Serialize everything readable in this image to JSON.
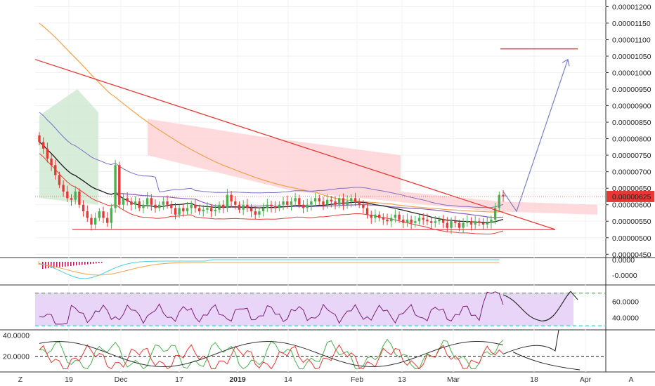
{
  "colors": {
    "up": "#4caf50",
    "down": "#e53935",
    "trendline": "#e53935",
    "forecast_arrow": "#7b7fc9",
    "ema_orange": "#f5a04a",
    "sma_black": "#222222",
    "bb_purple": "#8e5bbf",
    "bb_upper": "#7a6fc2",
    "ichimoku_red_cloud": "#ffcdd2",
    "ichimoku_green_cloud": "#c8e6c9",
    "rsi_line": "#7b1f7b",
    "rsi_band": "#e9d5f7",
    "rsi_upper_dash": "#4caf50",
    "rsi_lower_dash": "#4dd0e1",
    "macd_hist": "#c2185b",
    "price_badge": "#e53935"
  },
  "chart_data": [
    {
      "type": "candlestick",
      "panel": "price",
      "y_ticks": [
        "0.00001200",
        "0.00001150",
        "0.00001100",
        "0.00001050",
        "0.00001000",
        "0.00000950",
        "0.00000900",
        "0.00000850",
        "0.00000800",
        "0.00000750",
        "0.00000700",
        "0.00000650",
        "0.00000600",
        "0.00000550",
        "0.00000500",
        "0.00000450"
      ],
      "ylim": [
        4.4e-06,
        1.22e-05
      ],
      "last_price_label": "0.00000625",
      "last_price": 6.25e-06,
      "x_ticks": [
        "19",
        "Dec",
        "17",
        "2019",
        "14",
        "Feb",
        "13",
        "Mar",
        "18",
        "Apr"
      ],
      "candles_close": [
        7.9e-06,
        7.7e-06,
        7.4e-06,
        7.2e-06,
        6.9e-06,
        6.6e-06,
        6.4e-06,
        6.2e-06,
        6.15e-06,
        6.4e-06,
        6e-06,
        5.8e-06,
        5.6e-06,
        5.4e-06,
        5.6e-06,
        5.8e-06,
        5.6e-06,
        5.45e-06,
        5.9e-06,
        7.2e-06,
        6e-06,
        6.2e-06,
        6.1e-06,
        6e-06,
        6.1e-06,
        5.9e-06,
        6e-06,
        6.2e-06,
        6e-06,
        5.9e-06,
        6e-06,
        6.1e-06,
        6e-06,
        5.9e-06,
        5.7e-06,
        5.9e-06,
        5.8e-06,
        5.9e-06,
        6e-06,
        5.9e-06,
        5.8e-06,
        5.85e-06,
        5.9e-06,
        5.8e-06,
        5.85e-06,
        6e-06,
        5.9e-06,
        6.3e-06,
        6.1e-06,
        6e-06,
        5.85e-06,
        6e-06,
        5.9e-06,
        5.8e-06,
        5.7e-06,
        5.8e-06,
        5.9e-06,
        6e-06,
        5.95e-06,
        5.9e-06,
        6e-06,
        6.1e-06,
        6e-06,
        6.1e-06,
        6.2e-06,
        6e-06,
        5.9e-06,
        6e-06,
        6.1e-06,
        6.2e-06,
        6.1e-06,
        6e-06,
        6.15e-06,
        6.1e-06,
        6e-06,
        6.2e-06,
        6e-06,
        6.1e-06,
        6.2e-06,
        6.1e-06,
        6e-06,
        5.9e-06,
        5.7e-06,
        5.6e-06,
        5.7e-06,
        5.6e-06,
        5.55e-06,
        5.5e-06,
        5.6e-06,
        5.7e-06,
        5.55e-06,
        5.45e-06,
        5.55e-06,
        5.45e-06,
        5.5e-06,
        5.6e-06,
        5.55e-06,
        5.5e-06,
        5.45e-06,
        5.5e-06,
        5.55e-06,
        5.45e-06,
        5.3e-06,
        5.5e-06,
        5.45e-06,
        5.3e-06,
        5.45e-06,
        5.5e-06,
        5.4e-06,
        5.5e-06,
        5.45e-06,
        5.4e-06,
        5.45e-06,
        5.55e-06,
        5.9e-06,
        6.3e-06,
        6.25e-06
      ],
      "trendlines": [
        {
          "name": "descending-resistance",
          "from": [
            1.04e-05
          ],
          "to": [
            5.25e-06
          ]
        },
        {
          "name": "horizontal-support",
          "value": 5.25e-06
        },
        {
          "name": "target-line",
          "value": 1.072e-05
        }
      ]
    },
    {
      "type": "line",
      "panel": "macd",
      "y_ticks": [
        "0.0000",
        "-0.0000"
      ]
    },
    {
      "type": "line",
      "panel": "rsi",
      "y_ticks": [
        "60.0000",
        "40.0000"
      ],
      "upper_band": 70,
      "lower_band": 30
    },
    {
      "type": "line",
      "panel": "dmi",
      "y_ticks": [
        "40.0000",
        "20.0000"
      ],
      "reference_level": 20
    }
  ],
  "ui": {
    "z_button": "Z",
    "a_button": "A",
    "scroll_arrow": "‹"
  }
}
